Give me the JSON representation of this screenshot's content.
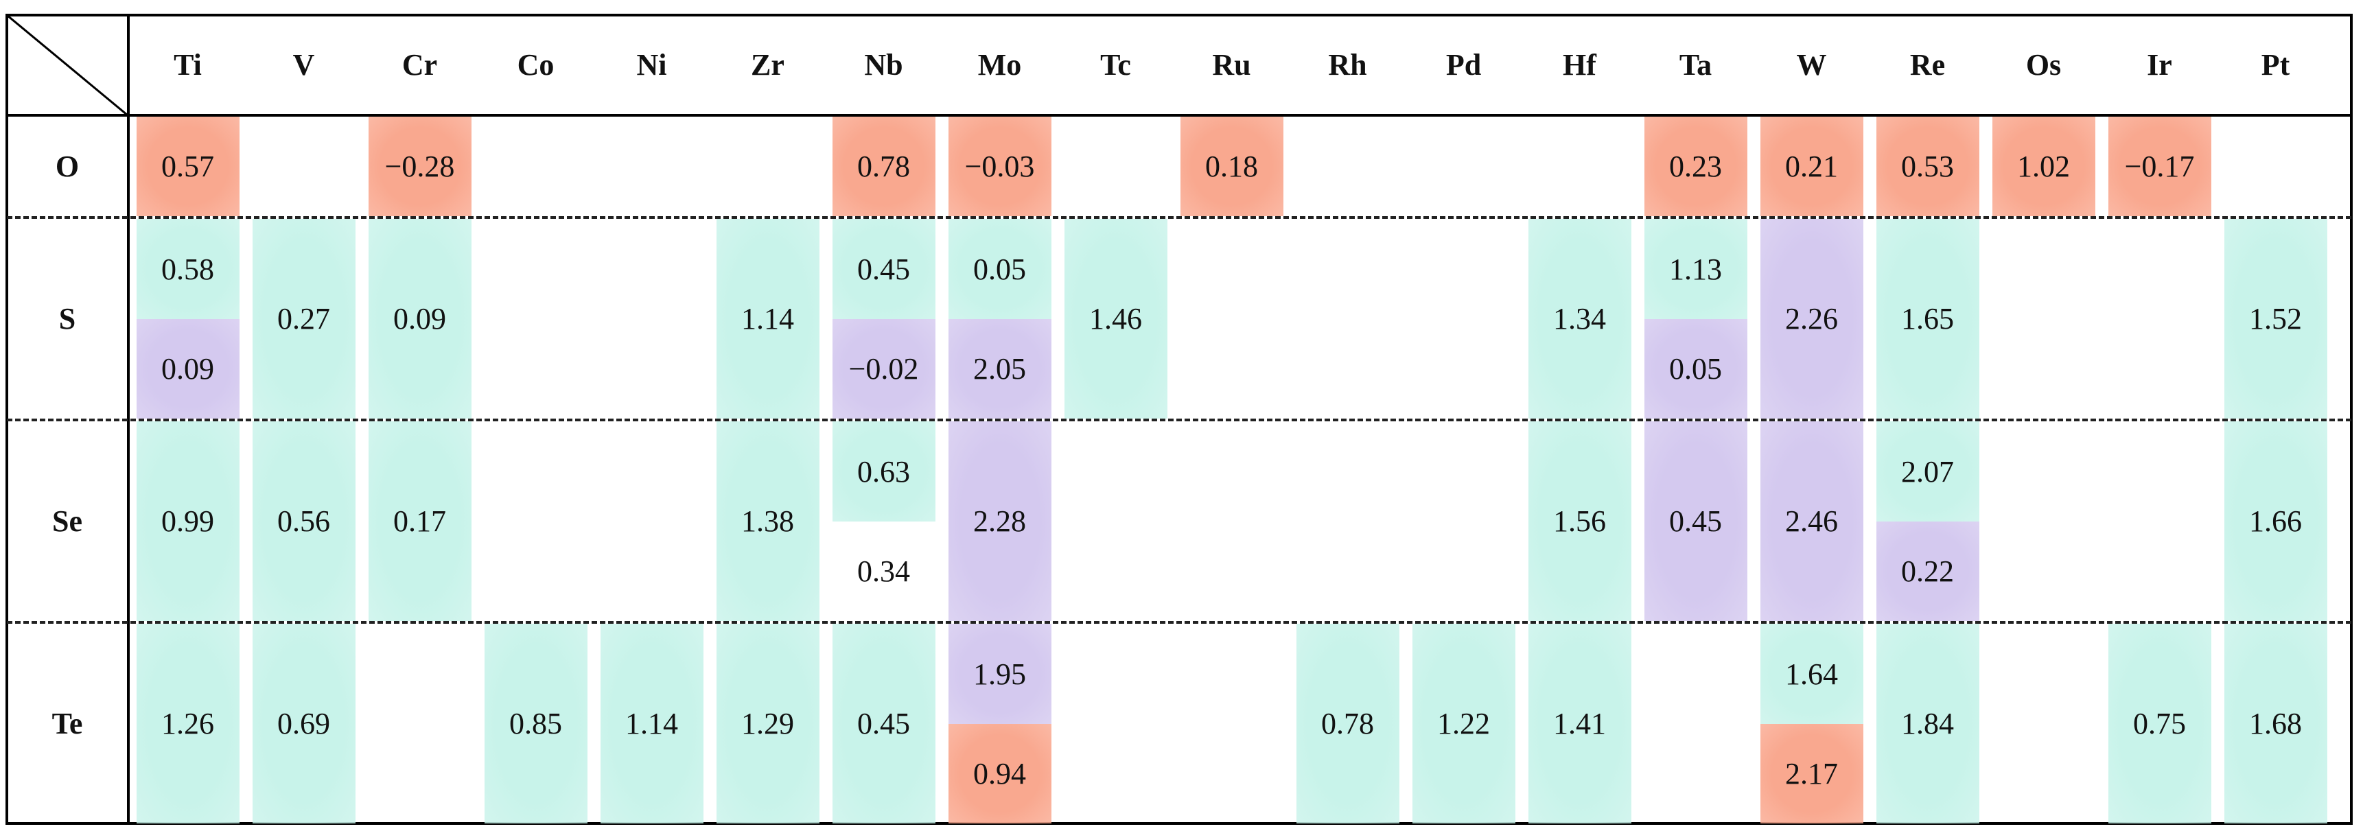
{
  "columns": [
    "Ti",
    "V",
    "Cr",
    "Co",
    "Ni",
    "Zr",
    "Nb",
    "Mo",
    "Tc",
    "Ru",
    "Rh",
    "Pd",
    "Hf",
    "Ta",
    "W",
    "Re",
    "Os",
    "Ir",
    "Pt"
  ],
  "rows": [
    "O",
    "S",
    "Se",
    "Te"
  ],
  "colors": {
    "orange": "#f9a88f",
    "teal": "#c8f3ea",
    "purple": "#d4c9ef",
    "white": "#ffffff"
  },
  "cells": {
    "O": [
      {
        "col": "Ti",
        "value": "0.57",
        "color": "orange"
      },
      {
        "col": "Cr",
        "value": "−0.28",
        "color": "orange"
      },
      {
        "col": "Nb",
        "value": "0.78",
        "color": "orange"
      },
      {
        "col": "Mo",
        "value": "−0.03",
        "color": "orange"
      },
      {
        "col": "Ru",
        "value": "0.18",
        "color": "orange"
      },
      {
        "col": "Ta",
        "value": "0.23",
        "color": "orange"
      },
      {
        "col": "W",
        "value": "0.21",
        "color": "orange"
      },
      {
        "col": "Re",
        "value": "0.53",
        "color": "orange"
      },
      {
        "col": "Os",
        "value": "1.02",
        "color": "orange"
      },
      {
        "col": "Ir",
        "value": "−0.17",
        "color": "orange"
      }
    ],
    "S": [
      {
        "col": "Ti",
        "top": {
          "value": "0.58",
          "color": "teal"
        },
        "bottom": {
          "value": "0.09",
          "color": "purple"
        }
      },
      {
        "col": "V",
        "value": "0.27",
        "color": "teal"
      },
      {
        "col": "Cr",
        "value": "0.09",
        "color": "teal"
      },
      {
        "col": "Zr",
        "value": "1.14",
        "color": "teal"
      },
      {
        "col": "Nb",
        "top": {
          "value": "0.45",
          "color": "teal"
        },
        "bottom": {
          "value": "−0.02",
          "color": "purple"
        }
      },
      {
        "col": "Mo",
        "top": {
          "value": "0.05",
          "color": "teal"
        },
        "bottom": {
          "value": "2.05",
          "color": "purple"
        }
      },
      {
        "col": "Tc",
        "value": "1.46",
        "color": "teal"
      },
      {
        "col": "Hf",
        "value": "1.34",
        "color": "teal"
      },
      {
        "col": "Ta",
        "top": {
          "value": "1.13",
          "color": "teal"
        },
        "bottom": {
          "value": "0.05",
          "color": "purple"
        }
      },
      {
        "col": "W",
        "value": "2.26",
        "color": "purple"
      },
      {
        "col": "Re",
        "value": "1.65",
        "color": "teal"
      },
      {
        "col": "Pt",
        "value": "1.52",
        "color": "teal"
      }
    ],
    "Se": [
      {
        "col": "Ti",
        "value": "0.99",
        "color": "teal"
      },
      {
        "col": "V",
        "value": "0.56",
        "color": "teal"
      },
      {
        "col": "Cr",
        "value": "0.17",
        "color": "teal"
      },
      {
        "col": "Zr",
        "value": "1.38",
        "color": "teal"
      },
      {
        "col": "Nb",
        "top": {
          "value": "0.63",
          "color": "teal"
        },
        "bottom": {
          "value": "0.34",
          "color": "white"
        }
      },
      {
        "col": "Mo",
        "value": "2.28",
        "color": "purple"
      },
      {
        "col": "Hf",
        "value": "1.56",
        "color": "teal"
      },
      {
        "col": "Ta",
        "value": "0.45",
        "color": "purple"
      },
      {
        "col": "W",
        "value": "2.46",
        "color": "purple"
      },
      {
        "col": "Re",
        "top": {
          "value": "2.07",
          "color": "teal"
        },
        "bottom": {
          "value": "0.22",
          "color": "purple"
        }
      },
      {
        "col": "Pt",
        "value": "1.66",
        "color": "teal"
      }
    ],
    "Te": [
      {
        "col": "Ti",
        "value": "1.26",
        "color": "teal"
      },
      {
        "col": "V",
        "value": "0.69",
        "color": "teal"
      },
      {
        "col": "Co",
        "value": "0.85",
        "color": "teal"
      },
      {
        "col": "Ni",
        "value": "1.14",
        "color": "teal"
      },
      {
        "col": "Zr",
        "value": "1.29",
        "color": "teal"
      },
      {
        "col": "Nb",
        "value": "0.45",
        "color": "teal"
      },
      {
        "col": "Mo",
        "top": {
          "value": "1.95",
          "color": "purple"
        },
        "bottom": {
          "value": "0.94",
          "color": "orange"
        }
      },
      {
        "col": "Rh",
        "value": "0.78",
        "color": "teal"
      },
      {
        "col": "Pd",
        "value": "1.22",
        "color": "teal"
      },
      {
        "col": "Hf",
        "value": "1.41",
        "color": "teal"
      },
      {
        "col": "W",
        "top": {
          "value": "1.64",
          "color": "teal"
        },
        "bottom": {
          "value": "2.17",
          "color": "orange"
        }
      },
      {
        "col": "Re",
        "value": "1.84",
        "color": "teal"
      },
      {
        "col": "Ir",
        "value": "0.75",
        "color": "teal"
      },
      {
        "col": "Pt",
        "value": "1.68",
        "color": "teal"
      }
    ]
  }
}
